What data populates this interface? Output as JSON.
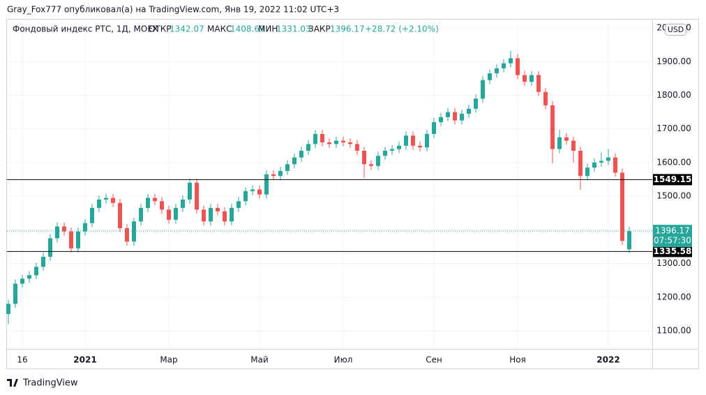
{
  "chart_data": {
    "type": "candlestick",
    "caption": "Gray_Fox777 опубликовал(а) на TradingView.com, Янв 19, 2022 11:02 UTC+3",
    "title": "Фондовый индекс РТС, 1Д, MOEX",
    "ohlc_labels": {
      "open": "ОТКР",
      "high": "МАКС",
      "low": "МИН",
      "close": "ЗАКР"
    },
    "change": "+28.72 (+2.10%)",
    "currency": "USD",
    "countdown": "07:57:30",
    "brand": "TradingView",
    "colors": {
      "up": "#26a69a",
      "down": "#ef5350"
    },
    "categories": [
      null,
      null,
      "16",
      null,
      null,
      null,
      null,
      null,
      null,
      null,
      null,
      "2021",
      null,
      null,
      null,
      null,
      null,
      null,
      null,
      null,
      null,
      null,
      null,
      "Мар",
      null,
      null,
      null,
      null,
      null,
      null,
      null,
      null,
      null,
      null,
      null,
      null,
      "Май",
      null,
      null,
      null,
      null,
      null,
      null,
      null,
      null,
      null,
      null,
      null,
      "Июл",
      null,
      null,
      null,
      null,
      null,
      null,
      null,
      null,
      null,
      null,
      null,
      null,
      "Сен",
      null,
      null,
      null,
      null,
      null,
      null,
      null,
      null,
      null,
      null,
      null,
      "Ноя",
      null,
      null,
      null,
      null,
      null,
      null,
      null,
      null,
      null,
      null,
      null,
      null,
      "2022",
      null,
      null,
      null
    ],
    "open": [
      1150,
      1180,
      1240,
      1255,
      1265,
      1290,
      1320,
      1375,
      1410,
      1395,
      1345,
      1395,
      1420,
      1465,
      1490,
      1495,
      1480,
      1405,
      1365,
      1425,
      1465,
      1495,
      1485,
      1460,
      1430,
      1465,
      1490,
      1540,
      1460,
      1425,
      1465,
      1455,
      1425,
      1465,
      1485,
      1515,
      1520,
      1505,
      1565,
      1560,
      1575,
      1595,
      1615,
      1635,
      1655,
      1685,
      1660,
      1655,
      1665,
      1660,
      1655,
      1635,
      1595,
      1590,
      1620,
      1635,
      1640,
      1650,
      1680,
      1650,
      1645,
      1685,
      1720,
      1735,
      1750,
      1725,
      1745,
      1760,
      1790,
      1845,
      1865,
      1880,
      1895,
      1910,
      1860,
      1840,
      1860,
      1810,
      1770,
      1640,
      1675,
      1665,
      1635,
      1560,
      1585,
      1600,
      1605,
      1615,
      1570,
      1342.07
    ],
    "high": [
      1192,
      1252,
      1267,
      1277,
      1302,
      1332,
      1387,
      1422,
      1422,
      1407,
      1407,
      1432,
      1477,
      1502,
      1507,
      1507,
      1492,
      1417,
      1437,
      1477,
      1507,
      1507,
      1497,
      1472,
      1477,
      1502,
      1552,
      1552,
      1472,
      1477,
      1477,
      1467,
      1477,
      1497,
      1527,
      1532,
      1532,
      1577,
      1577,
      1587,
      1607,
      1627,
      1647,
      1667,
      1697,
      1697,
      1672,
      1677,
      1677,
      1672,
      1667,
      1647,
      1607,
      1632,
      1647,
      1652,
      1662,
      1692,
      1692,
      1662,
      1697,
      1732,
      1747,
      1762,
      1762,
      1757,
      1772,
      1802,
      1857,
      1877,
      1892,
      1907,
      1932,
      1922,
      1872,
      1872,
      1872,
      1822,
      1782,
      1697,
      1687,
      1677,
      1647,
      1597,
      1612,
      1630,
      1640,
      1627,
      1582,
      1408.69
    ],
    "low": [
      1120,
      1168,
      1228,
      1243,
      1253,
      1278,
      1308,
      1363,
      1383,
      1333,
      1333,
      1383,
      1408,
      1453,
      1478,
      1468,
      1393,
      1353,
      1353,
      1413,
      1453,
      1473,
      1448,
      1418,
      1418,
      1453,
      1478,
      1448,
      1413,
      1413,
      1443,
      1413,
      1413,
      1453,
      1473,
      1503,
      1493,
      1493,
      1548,
      1548,
      1563,
      1583,
      1603,
      1623,
      1643,
      1648,
      1643,
      1643,
      1648,
      1643,
      1623,
      1555,
      1578,
      1578,
      1608,
      1623,
      1628,
      1638,
      1638,
      1633,
      1633,
      1673,
      1708,
      1723,
      1713,
      1713,
      1733,
      1748,
      1778,
      1833,
      1853,
      1868,
      1883,
      1848,
      1828,
      1828,
      1798,
      1758,
      1598,
      1628,
      1653,
      1600,
      1518,
      1548,
      1573,
      1588,
      1593,
      1558,
      1355,
      1331.03
    ],
    "close": [
      1180,
      1240,
      1255,
      1265,
      1290,
      1320,
      1375,
      1410,
      1395,
      1345,
      1395,
      1420,
      1465,
      1490,
      1495,
      1480,
      1405,
      1365,
      1425,
      1465,
      1495,
      1485,
      1460,
      1430,
      1465,
      1490,
      1540,
      1460,
      1425,
      1465,
      1455,
      1425,
      1465,
      1485,
      1515,
      1520,
      1505,
      1565,
      1560,
      1575,
      1595,
      1615,
      1635,
      1655,
      1685,
      1660,
      1655,
      1665,
      1660,
      1655,
      1635,
      1595,
      1590,
      1620,
      1635,
      1640,
      1650,
      1680,
      1650,
      1645,
      1685,
      1720,
      1735,
      1750,
      1725,
      1745,
      1760,
      1790,
      1845,
      1865,
      1880,
      1895,
      1910,
      1860,
      1840,
      1860,
      1810,
      1770,
      1640,
      1675,
      1665,
      1635,
      1560,
      1585,
      1600,
      1605,
      1615,
      1570,
      1367.45,
      1396.17
    ],
    "levels": [
      1549.15,
      1335.58
    ],
    "ylim": [
      1046,
      2025
    ],
    "yticks": [
      {
        "value": 1100,
        "label": "1100.00"
      },
      {
        "value": 1200,
        "label": "1200.00"
      },
      {
        "value": 1300,
        "label": "1300.00"
      },
      {
        "value": 1400,
        "label": "1400.00"
      },
      {
        "value": 1500,
        "label": "1500.00"
      },
      {
        "value": 1600,
        "label": "1600.00"
      },
      {
        "value": 1700,
        "label": "1700.00"
      },
      {
        "value": 1800,
        "label": "1800.00"
      },
      {
        "value": 1900,
        "label": "1900.00"
      },
      {
        "value": 2000,
        "label": "2000.00"
      }
    ],
    "grid": true
  }
}
